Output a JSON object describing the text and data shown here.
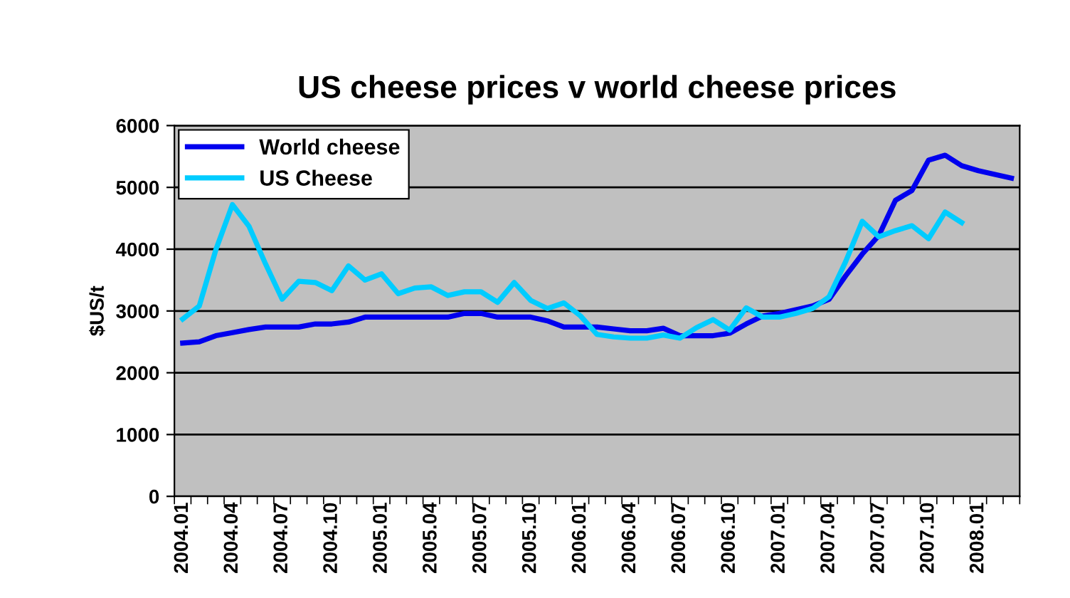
{
  "chart_data": {
    "type": "line",
    "title": "US cheese prices v world cheese prices",
    "ylabel": "$US/t",
    "categories": [
      "2004.01",
      null,
      null,
      "2004.04",
      null,
      null,
      "2004.07",
      null,
      null,
      "2004.10",
      null,
      null,
      "2005.01",
      null,
      null,
      "2005.04",
      null,
      null,
      "2005.07",
      null,
      null,
      "2005.10",
      null,
      null,
      "2006.01",
      null,
      null,
      "2006.04",
      null,
      null,
      "2006.07",
      null,
      null,
      "2006.10",
      null,
      null,
      "2007.01",
      null,
      null,
      "2007.04",
      null,
      null,
      "2007.07",
      null,
      null,
      "2007.10",
      null,
      null,
      "2008.01",
      null,
      null
    ],
    "series": [
      {
        "name": "World cheese",
        "color": "#0000ee",
        "values": [
          2480,
          2500,
          2600,
          2650,
          2700,
          2740,
          2740,
          2740,
          2790,
          2790,
          2820,
          2900,
          2900,
          2900,
          2900,
          2900,
          2900,
          2960,
          2960,
          2900,
          2900,
          2900,
          2840,
          2740,
          2740,
          2740,
          2710,
          2680,
          2680,
          2720,
          2600,
          2600,
          2600,
          2640,
          2790,
          2920,
          2960,
          3020,
          3080,
          3190,
          3570,
          3920,
          4220,
          4790,
          4950,
          5440,
          5520,
          5350,
          5270,
          5210,
          5150
        ]
      },
      {
        "name": "US Cheese",
        "color": "#00ccff",
        "values": [
          2870,
          3080,
          3990,
          4720,
          4370,
          3760,
          3190,
          3480,
          3460,
          3330,
          3730,
          3500,
          3600,
          3280,
          3370,
          3390,
          3250,
          3310,
          3310,
          3140,
          3460,
          3170,
          3040,
          3130,
          2920,
          2620,
          2580,
          2560,
          2560,
          2610,
          2560,
          2730,
          2860,
          2690,
          3050,
          2900,
          2900,
          2960,
          3040,
          3230,
          3800,
          4450,
          4200,
          4300,
          4380,
          4170,
          4600,
          4430,
          null,
          null,
          null
        ]
      }
    ],
    "ylim": [
      0,
      6000
    ],
    "yticks": [
      0,
      1000,
      2000,
      3000,
      4000,
      5000,
      6000
    ],
    "grid": "y",
    "legend": "top left",
    "line_style": "solid"
  }
}
